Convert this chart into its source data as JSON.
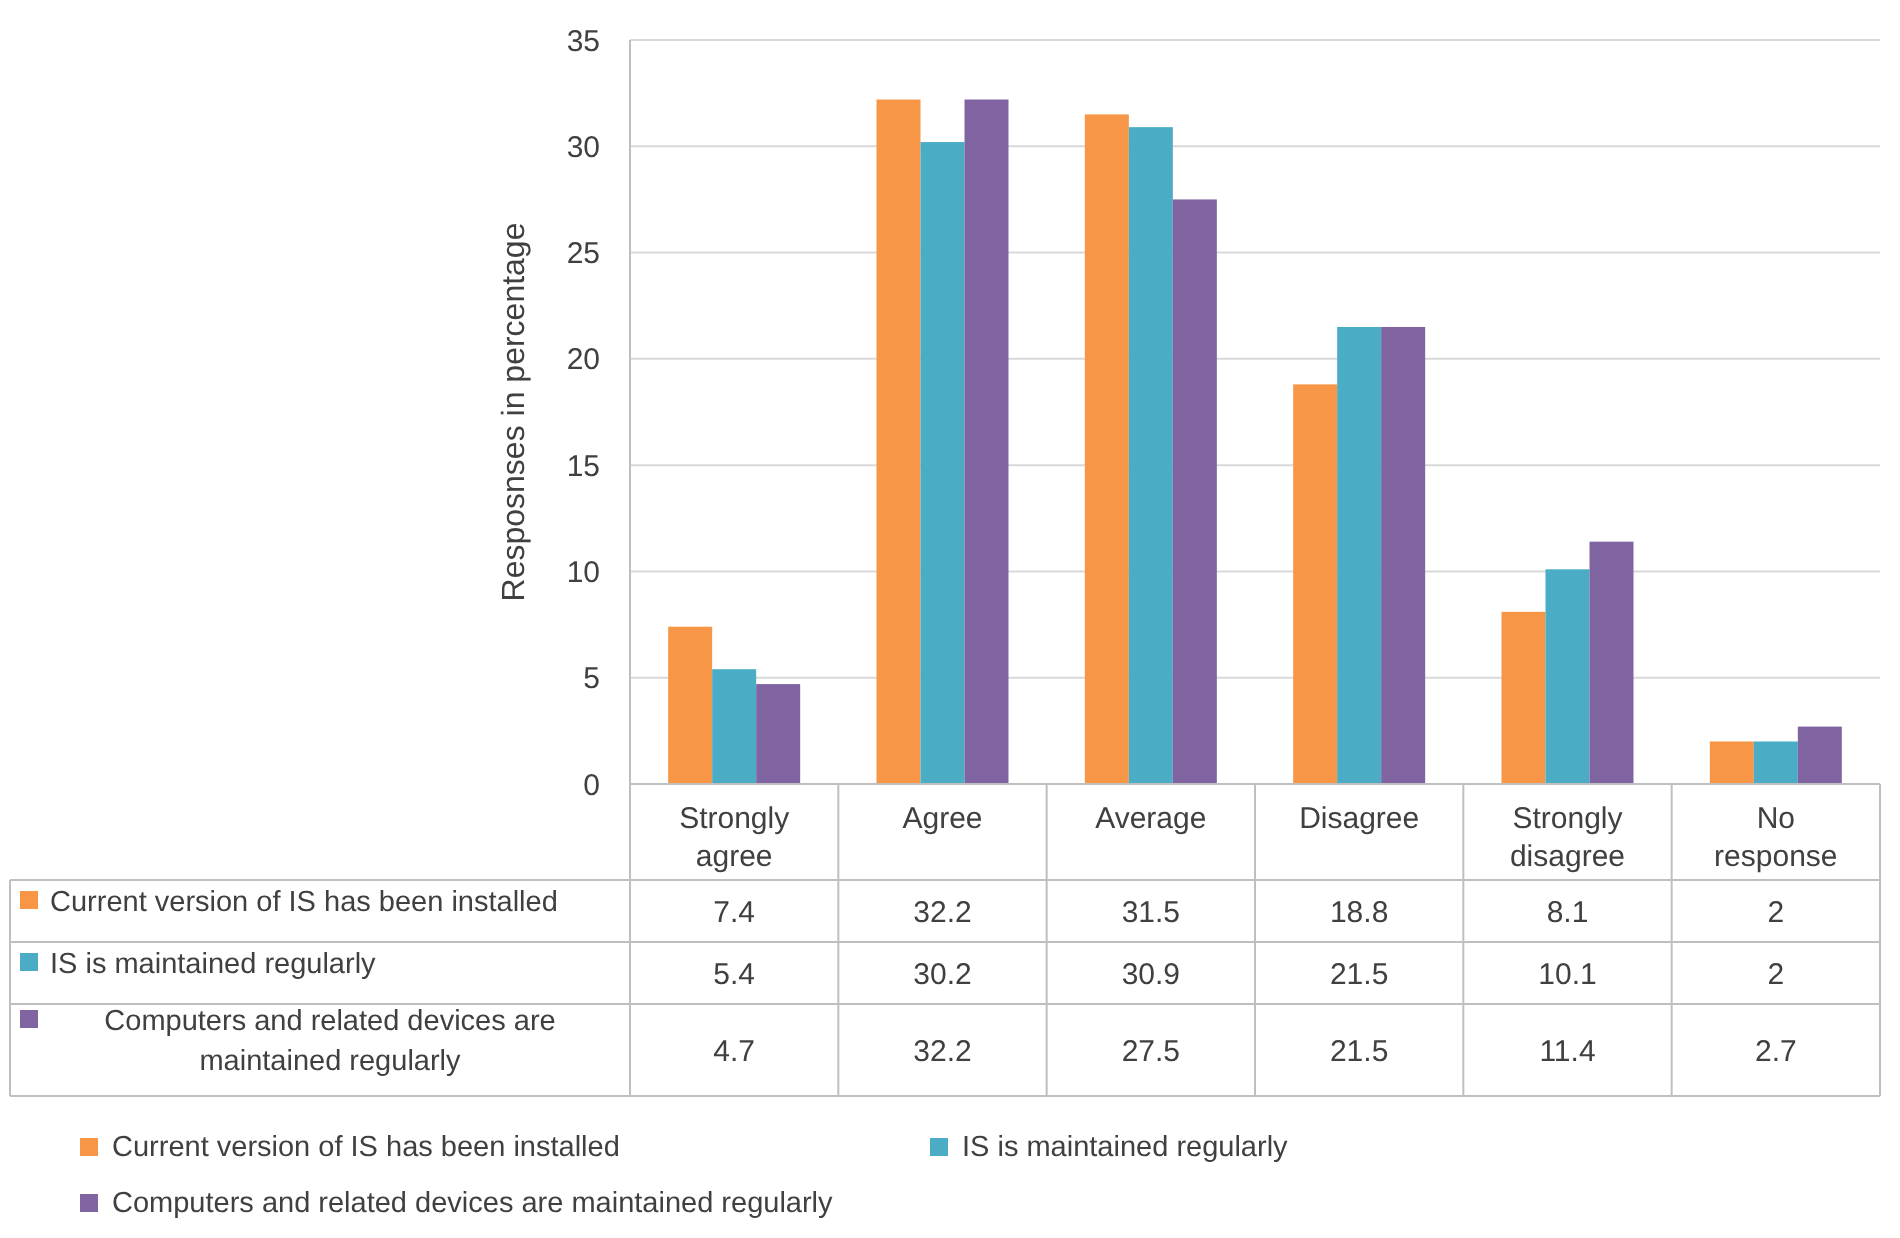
{
  "chart_data": {
    "type": "bar",
    "ylabel": "Resposnses in percentage",
    "categories": [
      "Strongly agree",
      "Agree",
      "Average",
      "Disagree",
      "Strongly disagree",
      "No response"
    ],
    "series": [
      {
        "name": "Current version of IS has been installed",
        "color": "#f79646",
        "values": [
          7.4,
          32.2,
          31.5,
          18.8,
          8.1,
          2
        ]
      },
      {
        "name": "IS is maintained regularly",
        "color": "#4bacc6",
        "values": [
          5.4,
          30.2,
          30.9,
          21.5,
          10.1,
          2
        ]
      },
      {
        "name": "Computers and related devices are maintained regularly",
        "color": "#8064a2",
        "values": [
          4.7,
          32.2,
          27.5,
          21.5,
          11.4,
          2.7
        ]
      }
    ],
    "ylim": [
      0,
      35
    ],
    "yticks": [
      0,
      5,
      10,
      15,
      20,
      25,
      30,
      35
    ],
    "grid": "y",
    "legend": "bottom",
    "data_labels": true
  }
}
